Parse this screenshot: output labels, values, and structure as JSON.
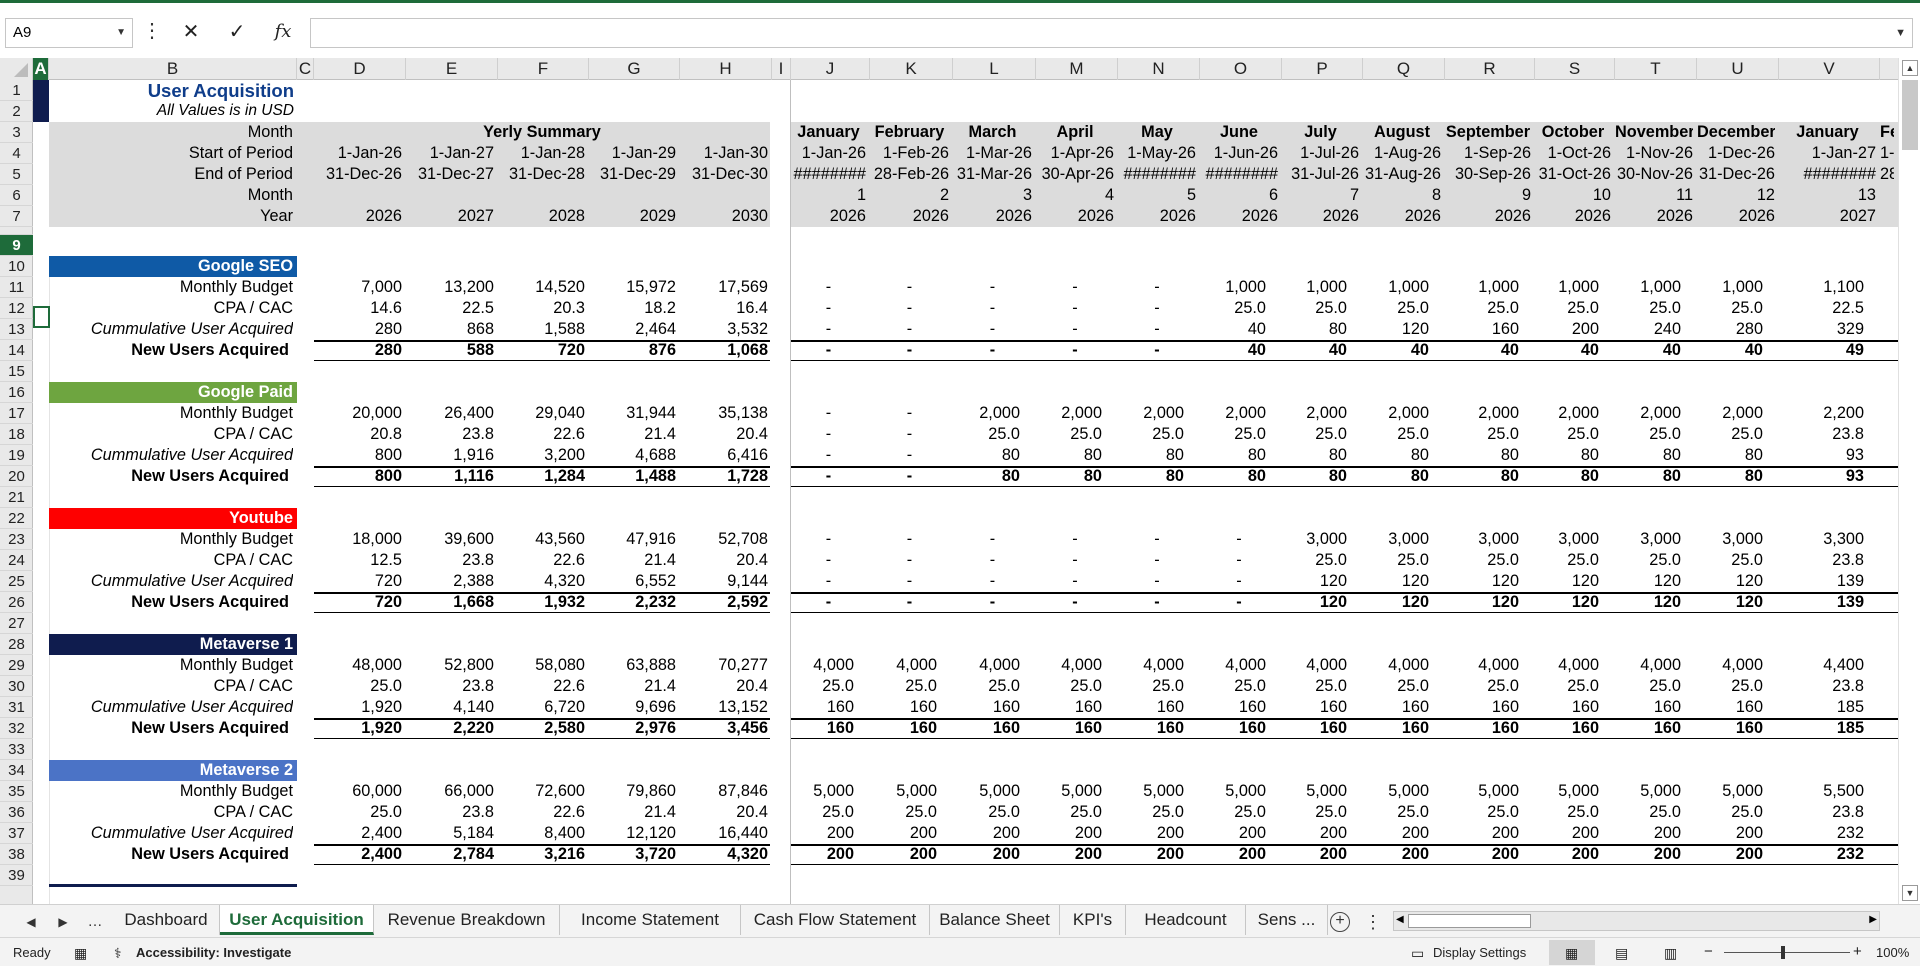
{
  "formula_bar": {
    "name_box": "A9",
    "fx_label": "fx",
    "cancel_label": "✕",
    "enter_label": "✓",
    "formula": ""
  },
  "columns": [
    "A",
    "B",
    "C",
    "D",
    "E",
    "F",
    "G",
    "H",
    "I",
    "J",
    "K",
    "L",
    "M",
    "N",
    "O",
    "P",
    "Q",
    "R",
    "S",
    "T",
    "U",
    "V"
  ],
  "selected_cell": "A9",
  "header": {
    "title": "User Acquisition",
    "subtitle": "All Values is in USD",
    "yearly_summary": "Yerly Summary",
    "labels": [
      "Month",
      "Start of Period",
      "End of Period",
      "Month",
      "Year"
    ]
  },
  "summary_cols": {
    "start": [
      "1-Jan-26",
      "1-Jan-27",
      "1-Jan-28",
      "1-Jan-29",
      "1-Jan-30"
    ],
    "end": [
      "31-Dec-26",
      "31-Dec-27",
      "31-Dec-28",
      "31-Dec-29",
      "31-Dec-30"
    ],
    "year": [
      "2026",
      "2027",
      "2028",
      "2029",
      "2030"
    ]
  },
  "monthly_cols": {
    "month": [
      "January",
      "February",
      "March",
      "April",
      "May",
      "June",
      "July",
      "August",
      "September",
      "October",
      "November",
      "December",
      "January",
      "Fe"
    ],
    "start": [
      "1-Jan-26",
      "1-Feb-26",
      "1-Mar-26",
      "1-Apr-26",
      "1-May-26",
      "1-Jun-26",
      "1-Jul-26",
      "1-Aug-26",
      "1-Sep-26",
      "1-Oct-26",
      "1-Nov-26",
      "1-Dec-26",
      "1-Jan-27",
      "1-"
    ],
    "end": [
      "########",
      "28-Feb-26",
      "31-Mar-26",
      "30-Apr-26",
      "########",
      "########",
      "31-Jul-26",
      "31-Aug-26",
      "30-Sep-26",
      "31-Oct-26",
      "30-Nov-26",
      "31-Dec-26",
      "########",
      "28-"
    ],
    "num": [
      "1",
      "2",
      "3",
      "4",
      "5",
      "6",
      "7",
      "8",
      "9",
      "10",
      "11",
      "12",
      "13",
      ""
    ],
    "year": [
      "2026",
      "2026",
      "2026",
      "2026",
      "2026",
      "2026",
      "2026",
      "2026",
      "2026",
      "2026",
      "2026",
      "2026",
      "2027",
      ""
    ]
  },
  "row_labels": [
    "Monthly Budget",
    "CPA / CAC",
    "Cummulative User Acquired",
    "New Users Acquired"
  ],
  "sections": [
    {
      "name": "Google SEO",
      "color": "#0f5aa6",
      "summary": [
        [
          "7,000",
          "13,200",
          "14,520",
          "15,972",
          "17,569"
        ],
        [
          "14.6",
          "22.5",
          "20.3",
          "18.2",
          "16.4"
        ],
        [
          "280",
          "868",
          "1,588",
          "2,464",
          "3,532"
        ],
        [
          "280",
          "588",
          "720",
          "876",
          "1,068"
        ]
      ],
      "monthly": [
        [
          "-",
          "-",
          "-",
          "-",
          "-",
          "1,000",
          "1,000",
          "1,000",
          "1,000",
          "1,000",
          "1,000",
          "1,000",
          "1,100"
        ],
        [
          "-",
          "-",
          "-",
          "-",
          "-",
          "25.0",
          "25.0",
          "25.0",
          "25.0",
          "25.0",
          "25.0",
          "25.0",
          "22.5"
        ],
        [
          "-",
          "-",
          "-",
          "-",
          "-",
          "40",
          "80",
          "120",
          "160",
          "200",
          "240",
          "280",
          "329"
        ],
        [
          "-",
          "-",
          "-",
          "-",
          "-",
          "40",
          "40",
          "40",
          "40",
          "40",
          "40",
          "40",
          "49"
        ]
      ]
    },
    {
      "name": "Google Paid",
      "color": "#6ea540",
      "summary": [
        [
          "20,000",
          "26,400",
          "29,040",
          "31,944",
          "35,138"
        ],
        [
          "20.8",
          "23.8",
          "22.6",
          "21.4",
          "20.4"
        ],
        [
          "800",
          "1,916",
          "3,200",
          "4,688",
          "6,416"
        ],
        [
          "800",
          "1,116",
          "1,284",
          "1,488",
          "1,728"
        ]
      ],
      "monthly": [
        [
          "-",
          "-",
          "2,000",
          "2,000",
          "2,000",
          "2,000",
          "2,000",
          "2,000",
          "2,000",
          "2,000",
          "2,000",
          "2,000",
          "2,200"
        ],
        [
          "-",
          "-",
          "25.0",
          "25.0",
          "25.0",
          "25.0",
          "25.0",
          "25.0",
          "25.0",
          "25.0",
          "25.0",
          "25.0",
          "23.8"
        ],
        [
          "-",
          "-",
          "80",
          "80",
          "80",
          "80",
          "80",
          "80",
          "80",
          "80",
          "80",
          "80",
          "93"
        ],
        [
          "-",
          "-",
          "80",
          "80",
          "80",
          "80",
          "80",
          "80",
          "80",
          "80",
          "80",
          "80",
          "93"
        ]
      ]
    },
    {
      "name": "Youtube",
      "color": "#fe0000",
      "summary": [
        [
          "18,000",
          "39,600",
          "43,560",
          "47,916",
          "52,708"
        ],
        [
          "12.5",
          "23.8",
          "22.6",
          "21.4",
          "20.4"
        ],
        [
          "720",
          "2,388",
          "4,320",
          "6,552",
          "9,144"
        ],
        [
          "720",
          "1,668",
          "1,932",
          "2,232",
          "2,592"
        ]
      ],
      "monthly": [
        [
          "-",
          "-",
          "-",
          "-",
          "-",
          "-",
          "3,000",
          "3,000",
          "3,000",
          "3,000",
          "3,000",
          "3,000",
          "3,300"
        ],
        [
          "-",
          "-",
          "-",
          "-",
          "-",
          "-",
          "25.0",
          "25.0",
          "25.0",
          "25.0",
          "25.0",
          "25.0",
          "23.8"
        ],
        [
          "-",
          "-",
          "-",
          "-",
          "-",
          "-",
          "120",
          "120",
          "120",
          "120",
          "120",
          "120",
          "139"
        ],
        [
          "-",
          "-",
          "-",
          "-",
          "-",
          "-",
          "120",
          "120",
          "120",
          "120",
          "120",
          "120",
          "139"
        ]
      ]
    },
    {
      "name": "Metaverse 1",
      "color": "#0f1c4e",
      "summary": [
        [
          "48,000",
          "52,800",
          "58,080",
          "63,888",
          "70,277"
        ],
        [
          "25.0",
          "23.8",
          "22.6",
          "21.4",
          "20.4"
        ],
        [
          "1,920",
          "4,140",
          "6,720",
          "9,696",
          "13,152"
        ],
        [
          "1,920",
          "2,220",
          "2,580",
          "2,976",
          "3,456"
        ]
      ],
      "monthly": [
        [
          "4,000",
          "4,000",
          "4,000",
          "4,000",
          "4,000",
          "4,000",
          "4,000",
          "4,000",
          "4,000",
          "4,000",
          "4,000",
          "4,000",
          "4,400"
        ],
        [
          "25.0",
          "25.0",
          "25.0",
          "25.0",
          "25.0",
          "25.0",
          "25.0",
          "25.0",
          "25.0",
          "25.0",
          "25.0",
          "25.0",
          "23.8"
        ],
        [
          "160",
          "160",
          "160",
          "160",
          "160",
          "160",
          "160",
          "160",
          "160",
          "160",
          "160",
          "160",
          "185"
        ],
        [
          "160",
          "160",
          "160",
          "160",
          "160",
          "160",
          "160",
          "160",
          "160",
          "160",
          "160",
          "160",
          "185"
        ]
      ]
    },
    {
      "name": "Metaverse 2",
      "color": "#4b73c6",
      "summary": [
        [
          "60,000",
          "66,000",
          "72,600",
          "79,860",
          "87,846"
        ],
        [
          "25.0",
          "23.8",
          "22.6",
          "21.4",
          "20.4"
        ],
        [
          "2,400",
          "5,184",
          "8,400",
          "12,120",
          "16,440"
        ],
        [
          "2,400",
          "2,784",
          "3,216",
          "3,720",
          "4,320"
        ]
      ],
      "monthly": [
        [
          "5,000",
          "5,000",
          "5,000",
          "5,000",
          "5,000",
          "5,000",
          "5,000",
          "5,000",
          "5,000",
          "5,000",
          "5,000",
          "5,000",
          "5,500"
        ],
        [
          "25.0",
          "25.0",
          "25.0",
          "25.0",
          "25.0",
          "25.0",
          "25.0",
          "25.0",
          "25.0",
          "25.0",
          "25.0",
          "25.0",
          "23.8"
        ],
        [
          "200",
          "200",
          "200",
          "200",
          "200",
          "200",
          "200",
          "200",
          "200",
          "200",
          "200",
          "200",
          "232"
        ],
        [
          "200",
          "200",
          "200",
          "200",
          "200",
          "200",
          "200",
          "200",
          "200",
          "200",
          "200",
          "200",
          "232"
        ]
      ]
    }
  ],
  "tabs": [
    "Dashboard",
    "User Acquisition",
    "Revenue Breakdown",
    "Income Statement",
    "Cash Flow Statement",
    "Balance Sheet",
    "KPI's",
    "Headcount",
    "Sens ..."
  ],
  "active_tab": "User Acquisition",
  "status": {
    "ready": "Ready",
    "accessibility": "Accessibility: Investigate",
    "display_settings": "Display Settings",
    "zoom_level": "100%",
    "zoom_minus": "−",
    "zoom_plus": "+"
  }
}
